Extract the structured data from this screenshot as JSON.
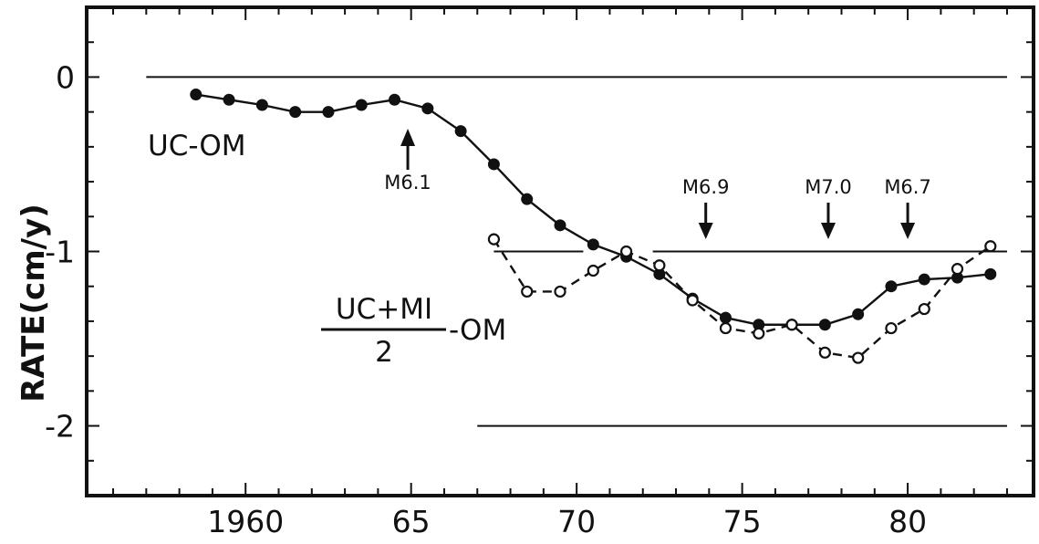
{
  "chart_data": {
    "type": "line",
    "ylabel": "RATE(cm/y)",
    "xlim": [
      1955.2,
      1983.8
    ],
    "ylim": [
      -2.4,
      0.4
    ],
    "x_ticks": [
      1960,
      65,
      70,
      75,
      80
    ],
    "x_tick_values": [
      1960,
      1965,
      1970,
      1975,
      1980
    ],
    "y_ticks": [
      "0",
      "-1",
      "-2"
    ],
    "y_tick_values": [
      0,
      -1,
      -2
    ],
    "grid": false,
    "reference_lines": [
      {
        "y": 0,
        "x_from": 1957.0,
        "x_to": 1983.0
      },
      {
        "y": -1,
        "x_from": 1967.5,
        "x_to": 1970.2
      },
      {
        "y": -1,
        "x_from": 1972.3,
        "x_to": 1983.0
      },
      {
        "y": -2,
        "x_from": 1967.0,
        "x_to": 1983.0
      }
    ],
    "series": [
      {
        "name": "UC-OM",
        "marker": "filled",
        "line": "solid",
        "x": [
          1958.5,
          1959.5,
          1960.5,
          1961.5,
          1962.5,
          1963.5,
          1964.5,
          1965.5,
          1966.5,
          1967.5,
          1968.5,
          1969.5,
          1970.5,
          1971.5,
          1972.5,
          1973.5,
          1974.5,
          1975.5,
          1976.5,
          1977.5,
          1978.5,
          1979.5,
          1980.5,
          1981.5,
          1982.5
        ],
        "y": [
          -0.1,
          -0.13,
          -0.16,
          -0.2,
          -0.2,
          -0.16,
          -0.13,
          -0.18,
          -0.31,
          -0.5,
          -0.7,
          -0.85,
          -0.96,
          -1.03,
          -1.13,
          -1.27,
          -1.38,
          -1.42,
          -1.42,
          -1.42,
          -1.36,
          -1.2,
          -1.16,
          -1.15,
          -1.13
        ]
      },
      {
        "name": "(UC+MI)/2 - OM",
        "marker": "open",
        "line": "dashed",
        "x": [
          1967.5,
          1968.5,
          1969.5,
          1970.5,
          1971.5,
          1972.5,
          1973.5,
          1974.5,
          1975.5,
          1976.5,
          1977.5,
          1978.5,
          1979.5,
          1980.5,
          1981.5,
          1982.5
        ],
        "y": [
          -0.93,
          -1.23,
          -1.23,
          -1.11,
          -1.0,
          -1.08,
          -1.28,
          -1.44,
          -1.47,
          -1.42,
          -1.58,
          -1.61,
          -1.44,
          -1.33,
          -1.1,
          -0.97
        ]
      }
    ],
    "annotations": [
      {
        "text": "UC-OM",
        "kind": "series-label"
      },
      {
        "text": "M6.1",
        "x": 1964.9,
        "direction": "up"
      },
      {
        "text": "M6.9",
        "x": 1973.9,
        "direction": "down"
      },
      {
        "text": "M7.0",
        "x": 1977.6,
        "direction": "down"
      },
      {
        "text": "M6.7",
        "x": 1980.0,
        "direction": "down"
      }
    ],
    "fraction_label": {
      "numerator": "UC+MI",
      "denominator": "2",
      "suffix": "-OM"
    }
  }
}
